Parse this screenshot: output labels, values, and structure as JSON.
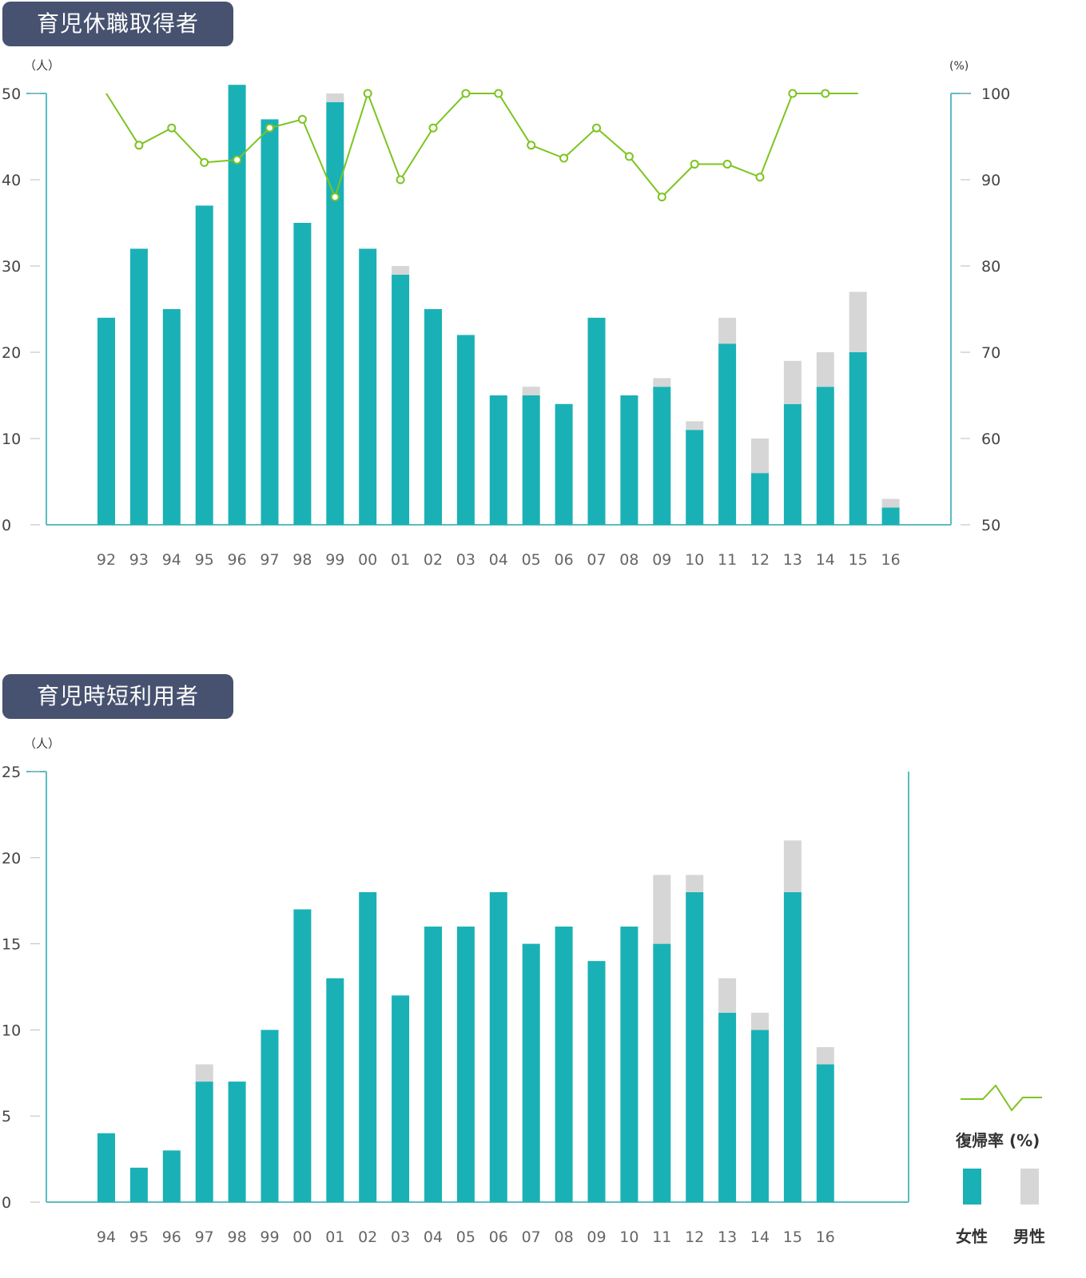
{
  "charts": {
    "leave": {
      "title": "育児休職取得者",
      "unit_left": "（人）",
      "unit_right": "(%)"
    },
    "short": {
      "title": "育児時短利用者",
      "unit_left": "（人）"
    }
  },
  "legend": {
    "line_label": "復帰率 (%)",
    "female_label": "女性",
    "male_label": "男性"
  },
  "colors": {
    "female": "#1ab1b6",
    "male": "#d6d6d6",
    "line": "#7cc420",
    "axis": "#5bbcc0",
    "title_bg": "#46526f"
  },
  "chart_data": [
    {
      "type": "bar",
      "stacked": true,
      "title": "育児休職取得者",
      "ylabel": "（人）",
      "y2label": "(%)",
      "ylim": [
        0,
        50
      ],
      "y2lim": [
        50,
        100
      ],
      "yticks": [
        0,
        10,
        20,
        30,
        40,
        50
      ],
      "y2ticks": [
        50,
        60,
        70,
        80,
        90,
        100
      ],
      "categories": [
        "92",
        "93",
        "94",
        "95",
        "96",
        "97",
        "98",
        "99",
        "00",
        "01",
        "02",
        "03",
        "04",
        "05",
        "06",
        "07",
        "08",
        "09",
        "10",
        "11",
        "12",
        "13",
        "14",
        "15",
        "16"
      ],
      "series": [
        {
          "name": "女性",
          "values": [
            24,
            32,
            25,
            37,
            51,
            47,
            35,
            49,
            32,
            29,
            25,
            22,
            15,
            15,
            14,
            24,
            15,
            16,
            11,
            21,
            6,
            14,
            16,
            20,
            2
          ]
        },
        {
          "name": "男性",
          "values": [
            0,
            0,
            0,
            0,
            0,
            0,
            0,
            1,
            0,
            1,
            0,
            0,
            0,
            1,
            0,
            0,
            0,
            1,
            1,
            3,
            4,
            5,
            4,
            7,
            1
          ]
        }
      ],
      "line": {
        "name": "復帰率 (%)",
        "axis": "right",
        "values": [
          100,
          94,
          96,
          92,
          92.3,
          96,
          97,
          88,
          100,
          90,
          96,
          100,
          100,
          94,
          92.5,
          96,
          92.7,
          88,
          91.8,
          91.8,
          90.3,
          100,
          100,
          100,
          null
        ]
      }
    },
    {
      "type": "bar",
      "stacked": true,
      "title": "育児時短利用者",
      "ylabel": "（人）",
      "ylim": [
        0,
        25
      ],
      "yticks": [
        0,
        5,
        10,
        15,
        20,
        25
      ],
      "categories": [
        "94",
        "95",
        "96",
        "97",
        "98",
        "99",
        "00",
        "01",
        "02",
        "03",
        "04",
        "05",
        "06",
        "07",
        "08",
        "09",
        "10",
        "11",
        "12",
        "13",
        "14",
        "15",
        "16"
      ],
      "series": [
        {
          "name": "女性",
          "values": [
            4,
            2,
            3,
            7,
            7,
            10,
            17,
            13,
            18,
            12,
            16,
            16,
            18,
            15,
            16,
            14,
            16,
            15,
            18,
            11,
            10,
            18,
            8
          ]
        },
        {
          "name": "男性",
          "values": [
            0,
            0,
            0,
            1,
            0,
            0,
            0,
            0,
            0,
            0,
            0,
            0,
            0,
            0,
            0,
            0,
            0,
            4,
            1,
            2,
            1,
            3,
            1
          ]
        }
      ]
    }
  ]
}
